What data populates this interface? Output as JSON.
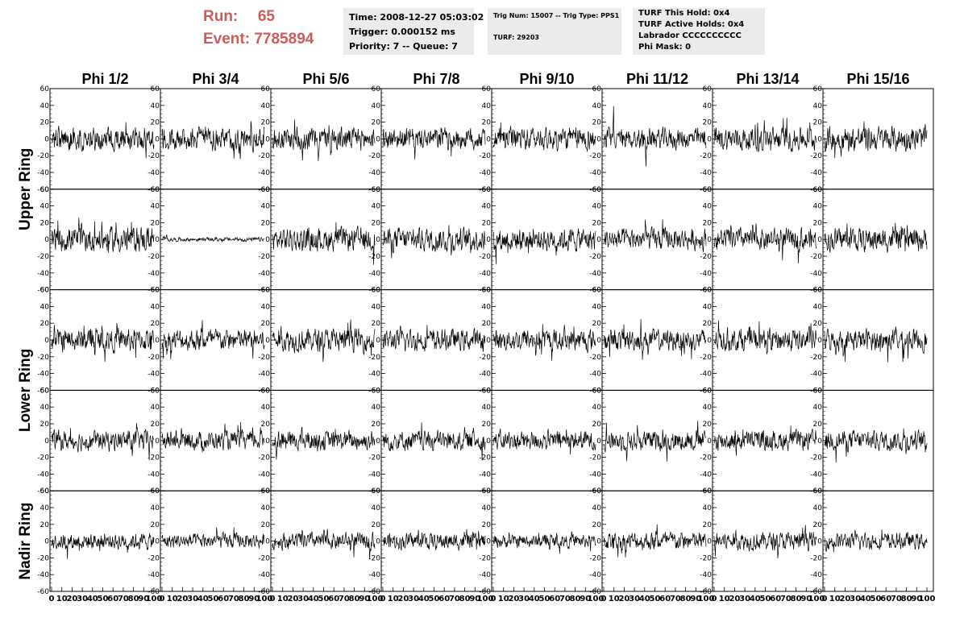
{
  "header": {
    "run_label": "Run:",
    "run_value": "65",
    "event_label": "Event:",
    "event_value": "7785894",
    "run_color": "#d05a5a",
    "time_line": "Time: 2008-12-27 05:03:02",
    "trigger_line": "Trigger: 0.000152 ms",
    "priority_line": "Priority: 7 -- Queue: 7",
    "trig_num_line": "Trig Num: 15007 -- Trig Type: PPS1",
    "turf_line": "TURF: 29203",
    "turf_hold_line": "TURF This Hold: 0x4",
    "turf_active_line": "TURF Active Holds: 0x4",
    "labrador_line": "Labrador CCCCCCCCCC",
    "phi_mask_line": "Phi Mask: 0"
  },
  "chart_data": {
    "type": "line",
    "columns": [
      "Phi 1/2",
      "Phi 3/4",
      "Phi 5/6",
      "Phi 7/8",
      "Phi 9/10",
      "Phi 11/12",
      "Phi 13/14",
      "Phi 15/16"
    ],
    "rings": [
      {
        "name": "Upper Ring",
        "rows": [
          0,
          1
        ]
      },
      {
        "name": "Lower Ring",
        "rows": [
          2,
          3
        ]
      },
      {
        "name": "Nadir Ring",
        "rows": [
          4
        ]
      }
    ],
    "xlim": [
      0,
      100
    ],
    "ylim": [
      -60,
      60
    ],
    "y_ticks": [
      -60,
      -40,
      -20,
      0,
      20,
      40,
      60
    ],
    "y_tick_labels": [
      "-60",
      "-40",
      "-20",
      "0",
      "20",
      "40",
      "60"
    ],
    "x_tick_labels": [
      "0",
      "10",
      "20",
      "30",
      "40",
      "50",
      "60",
      "70",
      "80",
      "90",
      "100"
    ],
    "samples_per_trace": 260,
    "amplitude_levels": [
      [
        14,
        14,
        14,
        13,
        14,
        13,
        14,
        15
      ],
      [
        15,
        2.5,
        14,
        14,
        14,
        13,
        13,
        14
      ],
      [
        14,
        13,
        14,
        13,
        13,
        13,
        14,
        13
      ],
      [
        12,
        11,
        12,
        12,
        12,
        12,
        12,
        12
      ],
      [
        10,
        9,
        10,
        10,
        8,
        11,
        11,
        10
      ]
    ],
    "trace_color": "#000000",
    "grid": false
  }
}
